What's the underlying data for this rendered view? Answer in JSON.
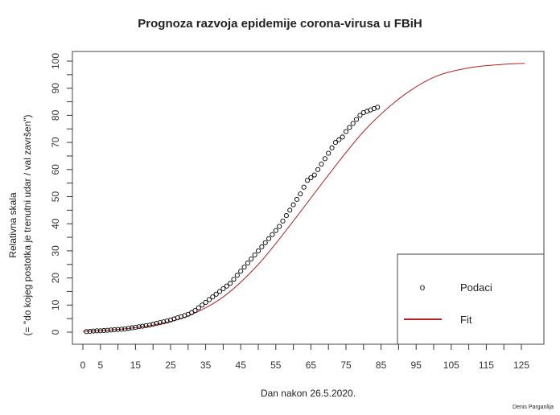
{
  "title": "Prognoza razvoja epidemije corona-virusa u FBiH",
  "xlabel": "Dan nakon 26.5.2020.",
  "ylabel_line1": "Relativna skala",
  "ylabel_line2": "(= \"do kojeg postotka je trenutni udar / val završen\")",
  "author": "Denis Parganlija",
  "legend": {
    "points_label": "Podaci",
    "line_label": "Fit",
    "point_symbol": "o"
  },
  "colors": {
    "fit": "#b22222",
    "points": "#000000",
    "frame": "#444444"
  },
  "chart_data": {
    "type": "scatter",
    "title": "Prognoza razvoja epidemije corona-virusa u FBiH",
    "xlabel": "Dan nakon 26.5.2020.",
    "ylabel": "Relativna skala (= \"do kojeg postotka je trenutni udar / val završen\")",
    "xlim": [
      -3,
      132
    ],
    "ylim": [
      -4,
      104
    ],
    "x_ticks": [
      0,
      5,
      10,
      15,
      20,
      25,
      30,
      35,
      40,
      45,
      50,
      55,
      60,
      65,
      70,
      75,
      80,
      85,
      90,
      95,
      100,
      105,
      110,
      115,
      120,
      125
    ],
    "x_tick_labels": [
      "0",
      "5",
      "15",
      "25",
      "35",
      "45",
      "55",
      "65",
      "75",
      "85",
      "95",
      "105",
      "115",
      "125"
    ],
    "y_ticks": [
      0,
      10,
      20,
      30,
      40,
      50,
      60,
      70,
      80,
      90,
      100
    ],
    "legend_position": "bottom-right",
    "series": [
      {
        "name": "Podaci",
        "kind": "points",
        "x": [
          1,
          2,
          3,
          4,
          5,
          6,
          7,
          8,
          9,
          10,
          11,
          12,
          13,
          14,
          15,
          16,
          17,
          18,
          19,
          20,
          21,
          22,
          23,
          24,
          25,
          26,
          27,
          28,
          29,
          30,
          31,
          32,
          33,
          34,
          35,
          36,
          37,
          38,
          39,
          40,
          41,
          42,
          43,
          44,
          45,
          46,
          47,
          48,
          49,
          50,
          51,
          52,
          53,
          54,
          55,
          56,
          57,
          58,
          59,
          60,
          61,
          62,
          63,
          64,
          65,
          66,
          67,
          68,
          69,
          70,
          71,
          72,
          73,
          74,
          75,
          76,
          77,
          78,
          79,
          80,
          81,
          82,
          83,
          84
        ],
        "y": [
          0.2,
          0.3,
          0.4,
          0.5,
          0.5,
          0.6,
          0.7,
          0.8,
          0.9,
          1.0,
          1.1,
          1.2,
          1.4,
          1.6,
          1.8,
          2.0,
          2.2,
          2.4,
          2.6,
          2.9,
          3.2,
          3.5,
          3.8,
          4.1,
          4.5,
          4.9,
          5.3,
          5.7,
          6.1,
          6.6,
          7.2,
          8.0,
          9.0,
          10.0,
          11.0,
          12.0,
          13.0,
          14.0,
          15.0,
          16.0,
          17.0,
          18.0,
          19.5,
          21.0,
          22.5,
          24.0,
          25.5,
          27.0,
          28.5,
          30.0,
          31.5,
          33.0,
          34.5,
          36.0,
          37.5,
          39.0,
          41.0,
          43.0,
          45.0,
          47.0,
          49.0,
          51.0,
          53.5,
          56.0,
          57.0,
          58.0,
          60.0,
          62.0,
          64.0,
          66.0,
          68.0,
          70.0,
          71.0,
          72.0,
          74.0,
          75.5,
          77.0,
          78.5,
          80.0,
          81.0,
          81.5,
          82.0,
          82.5,
          83.0
        ]
      },
      {
        "name": "Fit",
        "kind": "line",
        "x": [
          0,
          10,
          20,
          30,
          40,
          50,
          60,
          70,
          80,
          90,
          100,
          110,
          120,
          126
        ],
        "y": [
          0.3,
          1.0,
          2.6,
          6.0,
          13.0,
          25.0,
          41.0,
          58.0,
          74.0,
          86.0,
          94.0,
          97.5,
          98.8,
          99.2
        ]
      }
    ]
  }
}
